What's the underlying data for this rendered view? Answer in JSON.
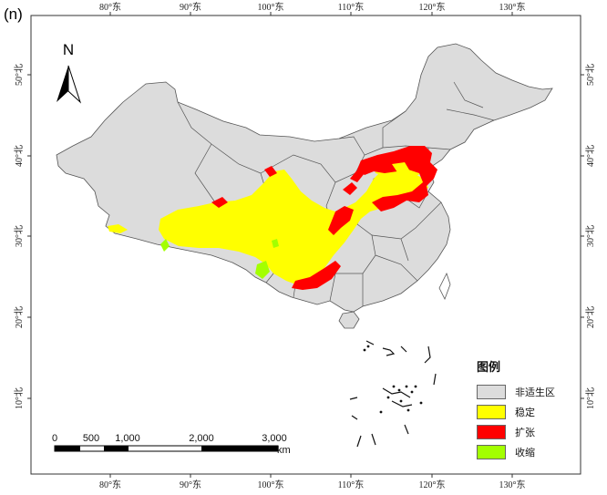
{
  "panel_label": "(n)",
  "north_arrow": {
    "label": "N"
  },
  "axes": {
    "top_longitudes": [
      "80°东",
      "90°东",
      "100°东",
      "110°东",
      "120°东",
      "130°东"
    ],
    "bottom_longitudes": [
      "80°东",
      "90°东",
      "100°东",
      "110°东",
      "120°东",
      "130°东"
    ],
    "left_latitudes": [
      "50°北",
      "40°北",
      "30°北",
      "20°北",
      "10°北"
    ],
    "right_latitudes": [
      "50°北",
      "40°北",
      "30°北",
      "20°北",
      "10°北"
    ]
  },
  "legend": {
    "title": "图例",
    "items": [
      {
        "label": "非适生区",
        "color": "#dcdcdc"
      },
      {
        "label": "稳定",
        "color": "#ffff00"
      },
      {
        "label": "扩张",
        "color": "#ff0000"
      },
      {
        "label": "收缩",
        "color": "#a3ff00"
      }
    ]
  },
  "scale_bar": {
    "labels": [
      "0",
      "500",
      "1,000",
      "2,000",
      "3,000"
    ],
    "unit": "km"
  }
}
